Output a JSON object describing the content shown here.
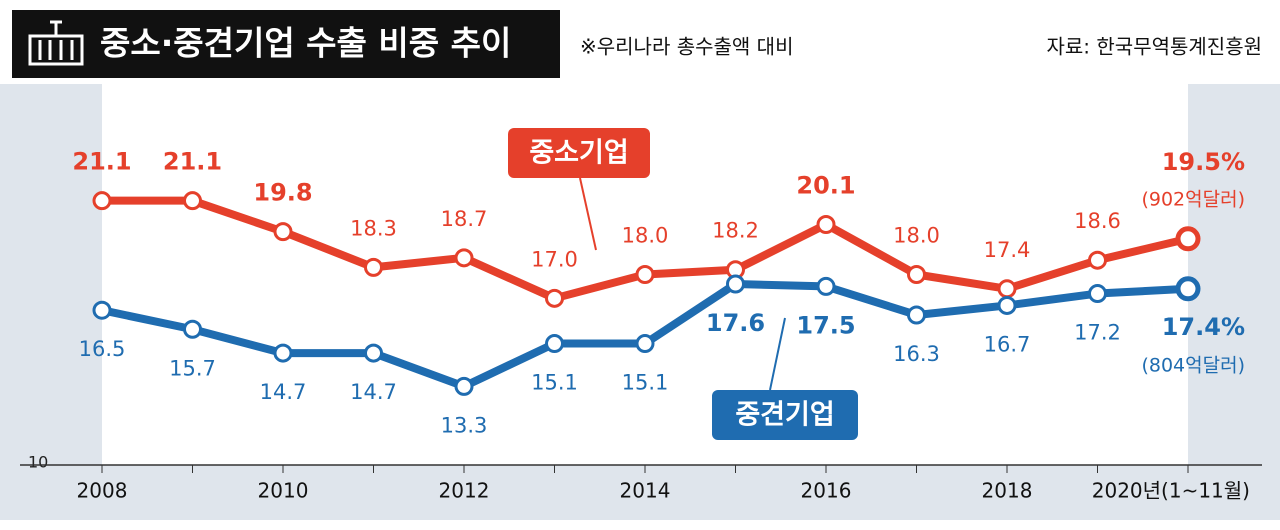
{
  "chart_data": {
    "type": "line",
    "title": "중소·중견기업 수출 비중 추이",
    "subtitle": "※우리나라 총수출액 대비",
    "source": "자료: 한국무역통계진흥원",
    "categories": [
      "2008",
      null,
      "2010",
      null,
      "2012",
      null,
      "2014",
      null,
      "2016",
      null,
      "2018",
      null,
      "2020년(1~11월)"
    ],
    "series": [
      {
        "name": "중소기업",
        "color": "#e5402b",
        "values": [
          21.1,
          21.1,
          19.8,
          18.3,
          18.7,
          17.0,
          18.0,
          18.2,
          20.1,
          18.0,
          17.4,
          18.6,
          19.5
        ],
        "value_labels": [
          "21.1",
          "21.1",
          "19.8",
          "18.3",
          "18.7",
          "17.0",
          "18.0",
          "18.2",
          "20.1",
          "18.0",
          "17.4",
          "18.6",
          "19.5%"
        ],
        "annotation": "(902억달러)"
      },
      {
        "name": "중견기업",
        "color": "#1f6cb0",
        "values": [
          16.5,
          15.7,
          14.7,
          14.7,
          13.3,
          15.1,
          15.1,
          17.6,
          17.5,
          16.3,
          16.7,
          17.2,
          17.4
        ],
        "value_labels": [
          "16.5",
          "15.7",
          "14.7",
          "14.7",
          "13.3",
          "15.1",
          "15.1",
          "17.6",
          "17.5",
          "16.3",
          "16.7",
          "17.2",
          "17.4%"
        ],
        "annotation": "(804억달러)"
      }
    ],
    "ylim": [
      10,
      26
    ],
    "yticks": [
      10
    ]
  }
}
